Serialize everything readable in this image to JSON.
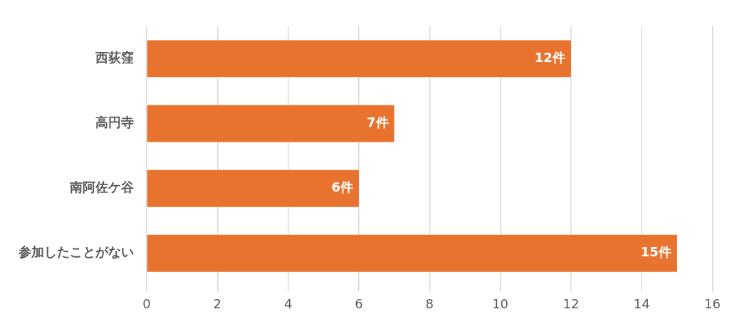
{
  "chart_data": {
    "type": "bar",
    "orientation": "horizontal",
    "categories": [
      "西荻窪",
      "高円寺",
      "南阿佐ケ谷",
      "参加したことがない"
    ],
    "values": [
      12,
      7,
      6,
      15
    ],
    "color": "#e8732f",
    "value_labels": [
      "12件",
      "7件",
      "6件",
      "15件"
    ],
    "xlim": [
      0,
      16
    ],
    "xticks": [
      0,
      2,
      4,
      6,
      8,
      10,
      12,
      14,
      16
    ],
    "grid": "x",
    "legend": false
  }
}
